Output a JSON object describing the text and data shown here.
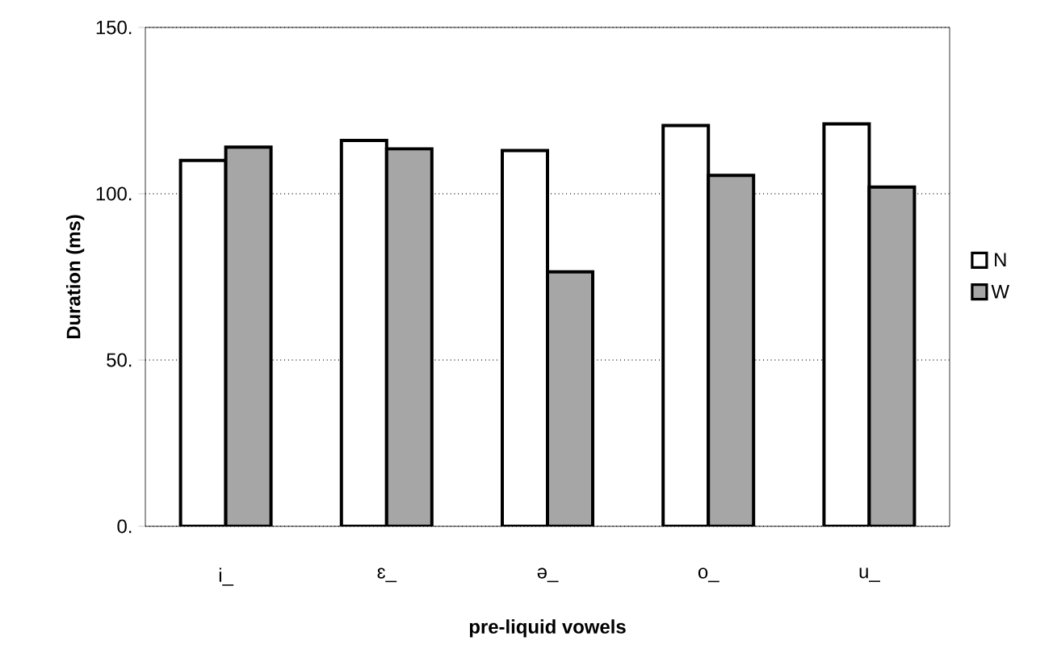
{
  "chart_data": {
    "type": "bar",
    "xlabel": "pre-liquid vowels",
    "ylabel": "Duration (ms)",
    "categories": [
      "i_",
      "ɛ_",
      "ə_",
      "o_",
      "u_"
    ],
    "series": [
      {
        "name": "N",
        "color": "#ffffff",
        "values": [
          110,
          116,
          113,
          120.5,
          121
        ]
      },
      {
        "name": "W",
        "color": "#a6a6a6",
        "values": [
          114,
          113.5,
          76.5,
          105.5,
          102
        ]
      }
    ],
    "ylim": [
      0,
      150
    ],
    "yticks": [
      {
        "value": 0,
        "label": "0."
      },
      {
        "value": 50,
        "label": "50."
      },
      {
        "value": 100,
        "label": "100."
      },
      {
        "value": 150,
        "label": "150."
      }
    ],
    "grid": "y",
    "legend": "right"
  }
}
